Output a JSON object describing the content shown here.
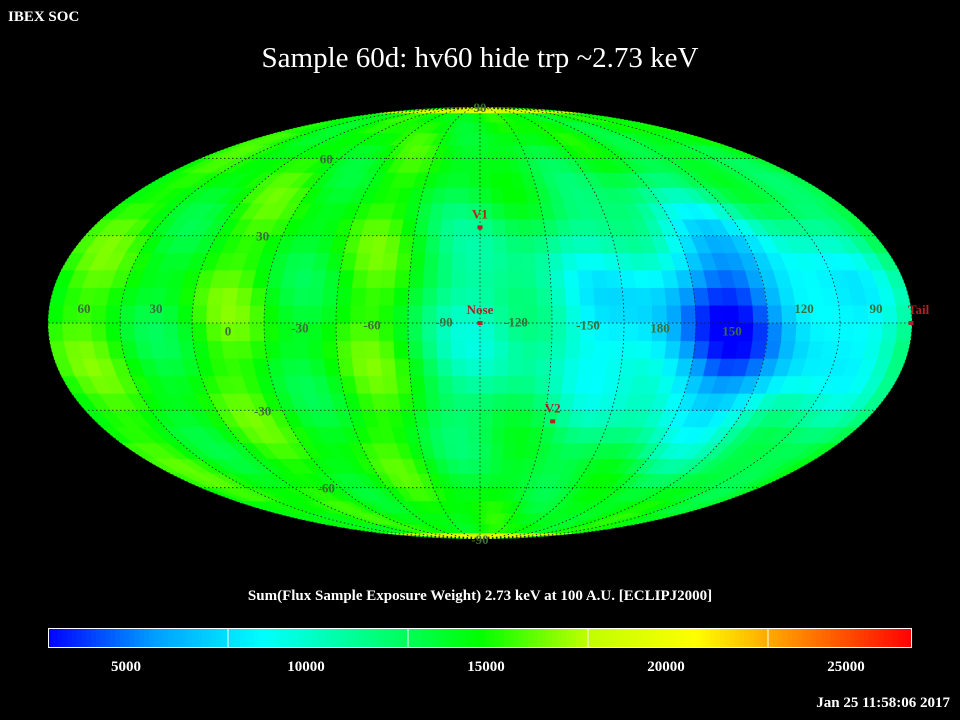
{
  "header": {
    "soc_label": "IBEX SOC",
    "title": "Sample 60d: hv60 hide trp ~2.73 keV"
  },
  "colorbar": {
    "title": "Sum(Flux Sample Exposure Weight)  2.73 keV at 100 A.U. [ECLIPJ2000]",
    "range": [
      2000,
      26000
    ],
    "ticks": [
      {
        "value": 5000,
        "label": "5000"
      },
      {
        "value": 10000,
        "label": "10000"
      },
      {
        "value": 15000,
        "label": "15000"
      },
      {
        "value": 20000,
        "label": "20000"
      },
      {
        "value": 25000,
        "label": "25000"
      }
    ],
    "colors": [
      "#0000ff",
      "#00a0ff",
      "#00ffff",
      "#00ff80",
      "#00ff00",
      "#c0ff00",
      "#ffff00",
      "#ff8000",
      "#ff0000"
    ]
  },
  "footer": {
    "timestamp": "Jan 25 11:58:06 2017"
  },
  "chart_data": {
    "type": "heatmap",
    "projection": "mollweide",
    "coordinate_frame": "ECLIPJ2000",
    "energy": "2.73 keV",
    "center_longitude": -105,
    "lon_labels": [
      "60",
      "30",
      "0",
      "-30",
      "-60",
      "-90",
      "-120",
      "-150",
      "180",
      "150",
      "120",
      "90"
    ],
    "lat_labels": [
      "90",
      "60",
      "30",
      "-30",
      "-60",
      "-90"
    ],
    "markers": [
      {
        "label": "V1",
        "lon": -105,
        "lat": 33
      },
      {
        "label": "Nose",
        "lon": -105,
        "lat": 0
      },
      {
        "label": "V2",
        "lon": -139,
        "lat": -34
      },
      {
        "label": "Tail",
        "lon": 75,
        "lat": 0
      }
    ],
    "background_level": 14000,
    "features": [
      {
        "name": "tail-deficit-region",
        "center_lon": 150,
        "center_lat": 0,
        "min_value": 3500
      },
      {
        "name": "nose-low-lane",
        "center_lon": -110,
        "center_lat": 0,
        "min_value": 10000
      },
      {
        "name": "polar-high-flux",
        "center_lon": 0,
        "center_lat": 88,
        "max_value": 25000
      }
    ]
  }
}
